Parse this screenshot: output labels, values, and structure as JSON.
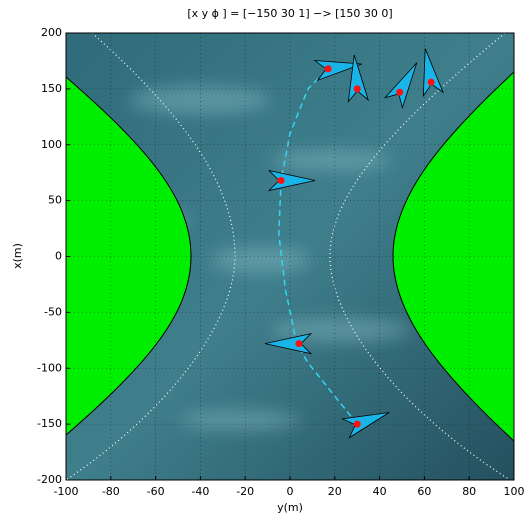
{
  "chart_data": {
    "type": "scatter",
    "title": "[x  y ϕ ] = [−150 30 1] −> [150 30 0]",
    "xlabel": "y(m)",
    "ylabel": "x(m)",
    "xlim": [
      -100,
      100
    ],
    "ylim": [
      -200,
      200
    ],
    "xticks": [
      -100,
      -80,
      -60,
      -40,
      -20,
      0,
      20,
      40,
      60,
      80,
      100
    ],
    "yticks": [
      -200,
      -150,
      -100,
      -50,
      0,
      50,
      100,
      150,
      200
    ],
    "grid": true,
    "path": {
      "color": "#33d6f0",
      "x": [
        30,
        18,
        8,
        3,
        -2,
        -5,
        -4,
        0,
        8,
        17
      ],
      "y": [
        -150,
        -120,
        -95,
        -78,
        -30,
        20,
        68,
        110,
        150,
        168
      ]
    },
    "series": [
      {
        "color": "#ff1010",
        "marker_color": "#19b4e8",
        "x": [
          30,
          4,
          -4,
          17,
          30,
          49,
          63
        ],
        "y": [
          -150,
          -78,
          68,
          168,
          150,
          147,
          156
        ],
        "headings": [
          20,
          180,
          0,
          8,
          95,
          60,
          100
        ]
      }
    ]
  }
}
